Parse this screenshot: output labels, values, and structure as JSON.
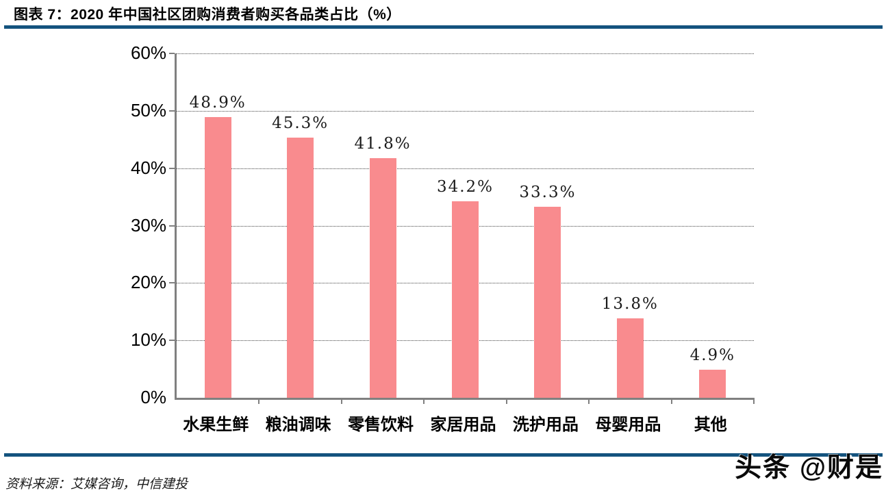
{
  "header": {
    "title": "图表 7：2020 年中国社区团购消费者购买各品类占比（%）"
  },
  "chart_data": {
    "type": "bar",
    "title": "2020 年中国社区团购消费者购买各品类占比（%）",
    "categories": [
      "水果生鲜",
      "粮油调味",
      "零售饮料",
      "家居用品",
      "洗护用品",
      "母婴用品",
      "其他"
    ],
    "values": [
      48.9,
      45.3,
      41.8,
      34.2,
      33.3,
      13.8,
      4.9
    ],
    "value_labels": [
      "48.9%",
      "45.3%",
      "41.8%",
      "34.2%",
      "33.3%",
      "13.8%",
      "4.9%"
    ],
    "xlabel": "",
    "ylabel": "",
    "ylim": [
      0,
      60
    ],
    "ytick_step": 10,
    "ytick_labels": [
      "0%",
      "10%",
      "20%",
      "30%",
      "40%",
      "50%",
      "60%"
    ],
    "grid": "horizontal-dotted",
    "legend": "none",
    "bar_color": "#F98B8E"
  },
  "footer": {
    "source": "资料来源：艾媒咨询，中信建投",
    "watermark": "头条 @财是"
  },
  "colors": {
    "rule_blue": "#14537E",
    "bar": "#F98B8E",
    "axis_gray": "#808080",
    "gridline": "#444444"
  }
}
